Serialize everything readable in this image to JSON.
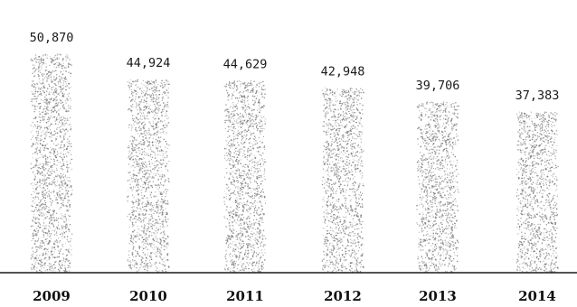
{
  "chart_data": {
    "type": "bar",
    "categories": [
      "2009",
      "2010",
      "2011",
      "2012",
      "2013",
      "2014"
    ],
    "values": [
      50870,
      44924,
      44629,
      42948,
      39706,
      37383
    ],
    "value_labels": [
      "50,870",
      "44,924",
      "44,629",
      "42,948",
      "39,706",
      "37,383"
    ],
    "title": "",
    "xlabel": "",
    "ylabel": "",
    "grid": false,
    "legend": "none",
    "bar_style": "stippled",
    "colors": {
      "bar_dot": "#7a7a7a",
      "baseline": "#1c1c1c",
      "text": "#111111"
    }
  }
}
